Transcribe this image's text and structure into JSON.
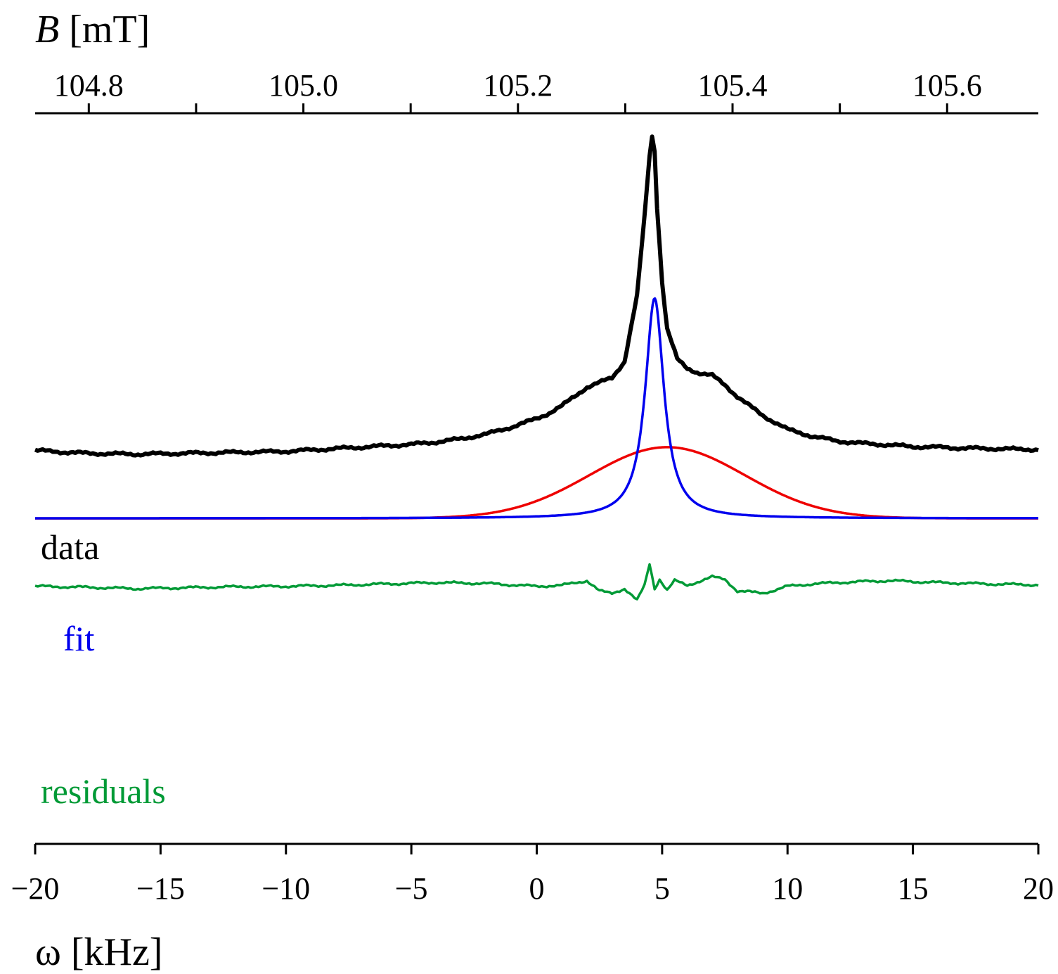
{
  "chart_data": {
    "type": "line",
    "bottom_axis": {
      "label": "ω [kHz]",
      "range": [
        -20,
        20
      ],
      "ticks": [
        -20,
        -15,
        -10,
        -5,
        0,
        5,
        10,
        15,
        20
      ],
      "tick_labels": [
        "−20",
        "−15",
        "−10",
        "−5",
        "0",
        "5",
        "10",
        "15",
        "20"
      ]
    },
    "top_axis": {
      "label_italic": "B",
      "label_unit": "[mT]",
      "range": [
        104.75,
        105.685
      ],
      "major_ticks": [
        104.8,
        105.0,
        105.2,
        105.4,
        105.6
      ],
      "tick_labels": [
        "104.8",
        "105.0",
        "105.2",
        "105.4",
        "105.6"
      ],
      "minor_ticks": [
        104.9,
        105.1,
        105.3,
        105.5
      ]
    },
    "y_axis": {
      "range": [
        -8.4,
        7.2
      ],
      "visible": false
    },
    "colors": {
      "data": "#000000",
      "fit": "#0000ee",
      "fit_broad": "#ee0000",
      "residuals": "#009a36",
      "axis": "#000000"
    },
    "series": [
      {
        "name": "data",
        "label": "data",
        "color": "#000000",
        "baseline": 0,
        "x": [
          -20,
          -18,
          -16,
          -14,
          -12,
          -10,
          -8,
          -6,
          -5,
          -4,
          -3,
          -2,
          -1,
          0,
          0.5,
          1,
          1.5,
          2,
          2.5,
          3,
          3.5,
          4,
          4.3,
          4.5,
          4.6,
          4.7,
          4.8,
          5.0,
          5.2,
          5.6,
          6,
          6.5,
          7,
          7.5,
          8,
          8.5,
          9,
          9.5,
          10,
          11,
          12,
          13,
          14,
          15,
          16,
          17,
          18,
          20
        ],
        "y": [
          0.0,
          -0.06,
          -0.08,
          -0.06,
          -0.04,
          -0.02,
          0.04,
          0.1,
          0.13,
          0.18,
          0.25,
          0.35,
          0.5,
          0.68,
          0.8,
          0.95,
          1.15,
          1.35,
          1.45,
          1.55,
          1.9,
          3.3,
          5.0,
          6.3,
          6.7,
          6.4,
          5.2,
          3.6,
          2.6,
          1.95,
          1.75,
          1.65,
          1.6,
          1.4,
          1.15,
          0.95,
          0.75,
          0.6,
          0.45,
          0.3,
          0.2,
          0.15,
          0.12,
          0.08,
          0.07,
          0.05,
          0.04,
          0.02
        ]
      },
      {
        "name": "fit",
        "label": "fit",
        "color": "#0000ee",
        "baseline": -1.45,
        "components": [
          {
            "shape": "lorentzian",
            "color": "#0000ee",
            "center": 4.7,
            "hwhm": 0.45,
            "amplitude": 4.7
          },
          {
            "shape": "gaussian",
            "color": "#ee0000",
            "center": 5.2,
            "sigma": 3.1,
            "amplitude": 1.52
          }
        ]
      },
      {
        "name": "residuals",
        "label": "residuals",
        "color": "#009a36",
        "baseline": -2.9,
        "x": [
          -20,
          -18,
          -16,
          -14,
          -12,
          -10,
          -8,
          -6,
          -4,
          -2,
          0,
          1,
          2,
          2.5,
          3,
          3.5,
          4,
          4.3,
          4.5,
          4.7,
          4.9,
          5.2,
          5.5,
          6,
          7,
          7.5,
          8,
          8.5,
          9,
          9.5,
          10,
          11,
          12,
          13,
          14,
          15,
          16,
          18,
          20
        ],
        "y": [
          0.0,
          -0.02,
          -0.05,
          -0.03,
          -0.01,
          0.0,
          0.02,
          0.05,
          0.08,
          0.06,
          0.0,
          0.02,
          0.12,
          -0.1,
          -0.15,
          -0.05,
          -0.3,
          0.02,
          0.48,
          -0.05,
          0.15,
          -0.08,
          0.12,
          0.02,
          0.2,
          0.15,
          -0.1,
          -0.12,
          -0.15,
          -0.08,
          0.0,
          0.05,
          0.08,
          0.1,
          0.12,
          0.1,
          0.08,
          0.05,
          0.03
        ]
      }
    ]
  }
}
